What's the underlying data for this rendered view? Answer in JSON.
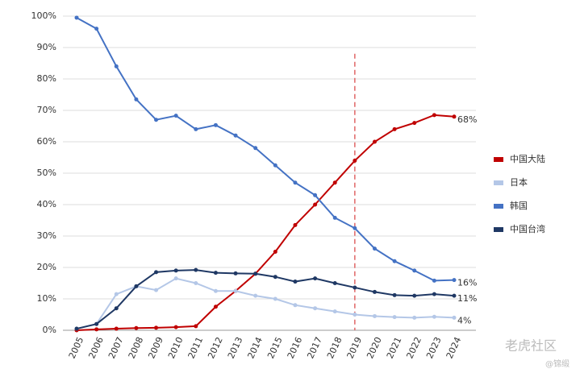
{
  "chart_data": {
    "type": "line",
    "categories": [
      "2005",
      "2006",
      "2007",
      "2008",
      "2009",
      "2010",
      "2011",
      "2012",
      "2013",
      "2014",
      "2015",
      "2016",
      "2017",
      "2018",
      "2019",
      "2020",
      "2021",
      "2022",
      "2023",
      "2024"
    ],
    "series": [
      {
        "name": "中国大陆",
        "color": "#c00000",
        "values": [
          0,
          0.3,
          0.5,
          0.7,
          0.8,
          1,
          1.3,
          7.5,
          12.5,
          18,
          25,
          33.5,
          40,
          47,
          54,
          60,
          64,
          66,
          68.5,
          68
        ],
        "value_labels": [
          null,
          null,
          null,
          null,
          null,
          null,
          null,
          null,
          null,
          null,
          null,
          null,
          null,
          null,
          null,
          null,
          null,
          null,
          null,
          "68%"
        ]
      },
      {
        "name": "日本",
        "color": "#b4c7e7",
        "values": [
          0.5,
          2,
          11.5,
          14,
          12.8,
          16.5,
          15,
          12.5,
          12.5,
          11,
          10,
          8,
          7,
          6,
          5,
          4.5,
          4.2,
          4,
          4.3,
          4
        ],
        "value_labels": [
          null,
          null,
          null,
          null,
          null,
          null,
          null,
          null,
          null,
          null,
          null,
          null,
          null,
          null,
          null,
          null,
          null,
          null,
          null,
          "4%"
        ]
      },
      {
        "name": "韩国",
        "color": "#4472c4",
        "values": [
          99.5,
          96,
          84,
          73.5,
          67,
          68.3,
          64,
          65.3,
          62,
          58,
          52.5,
          47,
          43,
          35.8,
          32.5,
          26,
          22,
          19,
          15.8,
          16
        ],
        "value_labels": [
          null,
          null,
          null,
          null,
          null,
          null,
          null,
          null,
          null,
          null,
          null,
          null,
          null,
          null,
          null,
          null,
          null,
          null,
          null,
          "16%"
        ]
      },
      {
        "name": "中国台湾",
        "color": "#1f3864",
        "values": [
          0.5,
          2,
          7,
          14,
          18.5,
          19,
          19.2,
          18.3,
          18.1,
          18,
          17,
          15.5,
          16.5,
          15,
          13.6,
          12.2,
          11.2,
          11,
          11.5,
          11
        ],
        "value_labels": [
          null,
          null,
          null,
          null,
          null,
          null,
          null,
          null,
          null,
          null,
          null,
          null,
          null,
          null,
          null,
          null,
          null,
          null,
          null,
          "11%"
        ]
      }
    ],
    "ylim": [
      0,
      100
    ],
    "yticks": [
      {
        "value": 0,
        "label": "0%"
      },
      {
        "value": 10,
        "label": "10%"
      },
      {
        "value": 20,
        "label": "20%"
      },
      {
        "value": 30,
        "label": "30%"
      },
      {
        "value": 40,
        "label": "40%"
      },
      {
        "value": 50,
        "label": "50%"
      },
      {
        "value": 60,
        "label": "60%"
      },
      {
        "value": 70,
        "label": "70%"
      },
      {
        "value": 80,
        "label": "80%"
      },
      {
        "value": 90,
        "label": "90%"
      },
      {
        "value": 100,
        "label": "100%"
      }
    ],
    "grid": true,
    "legend": "right",
    "reference_line": {
      "category": "2019",
      "color": "#e06666",
      "style": "dashed"
    }
  },
  "watermark": {
    "text": "老虎社区",
    "handle": "@锦缎"
  }
}
